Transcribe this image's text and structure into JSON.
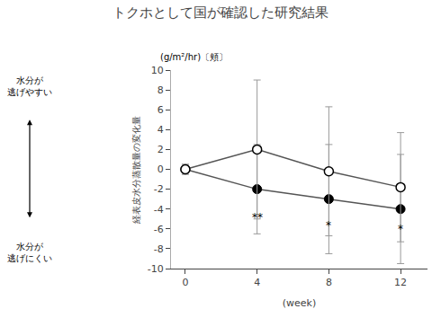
{
  "chart_data": {
    "type": "line",
    "title": "トクホとして国が確認した研究結果",
    "xlabel": "(week)",
    "ylabel": "経表皮水分蒸散量の変化量",
    "ylabel_top": "(g/m²/hr)〔頬〕",
    "arrow_label_top": "水分が\n逃げやすい",
    "arrow_label_bottom": "水分が\n逃げにくい",
    "x": [
      0,
      4,
      8,
      12
    ],
    "xlim": [
      -0.8,
      13.5
    ],
    "xticks": [
      0,
      4,
      8,
      12
    ],
    "ylim": [
      -10,
      10
    ],
    "yticks": [
      -10,
      -8,
      -6,
      -4,
      -2,
      0,
      2,
      4,
      6,
      8,
      10
    ],
    "grid": false,
    "series": [
      {
        "values": [
          0.0,
          -2.0,
          -3.0,
          -4.0
        ],
        "yerr_low": [
          0.5,
          4.5,
          5.5,
          5.5
        ],
        "yerr_high": [
          0.5,
          4.5,
          5.5,
          5.5
        ],
        "color": "#555555",
        "marker": "filled"
      },
      {
        "values": [
          0.0,
          2.0,
          -0.2,
          -1.8
        ],
        "yerr_low": [
          0.5,
          7.0,
          6.5,
          5.5
        ],
        "yerr_high": [
          0.5,
          7.0,
          6.5,
          5.5
        ],
        "color": "#555555",
        "marker": "open"
      }
    ],
    "annotations": [
      {
        "x": 4,
        "y": -4.0,
        "text": "**"
      },
      {
        "x": 8,
        "y": -4.8,
        "text": "*"
      },
      {
        "x": 12,
        "y": -5.2,
        "text": "*"
      }
    ]
  }
}
